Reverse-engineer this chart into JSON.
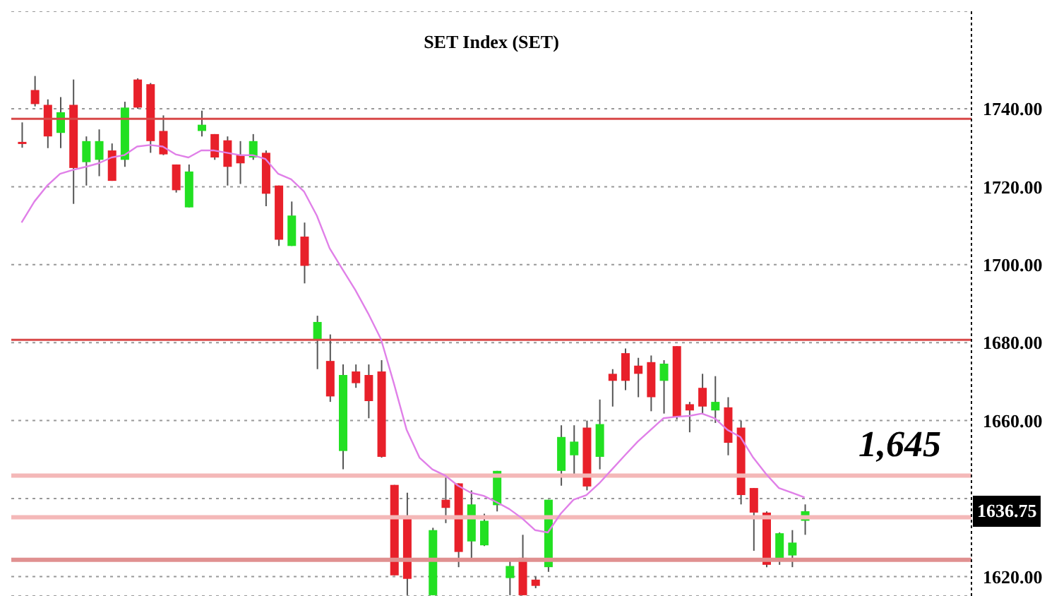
{
  "chart_data": {
    "type": "candlestick",
    "title": "SET  Index  (SET)",
    "categories": [
      null,
      null,
      null,
      null,
      null,
      null,
      null,
      null,
      null,
      null,
      null,
      null,
      null,
      null,
      null,
      null,
      null,
      null,
      null,
      null,
      null,
      null,
      null,
      null,
      null,
      null,
      null,
      null,
      null,
      null,
      null,
      null,
      null,
      null,
      null,
      null,
      null,
      null,
      null,
      null,
      null,
      null,
      null,
      null,
      null,
      null,
      null,
      null,
      null,
      null,
      null,
      null,
      null,
      null,
      null,
      null,
      null,
      null,
      null,
      null,
      null,
      null
    ],
    "ohlc": [
      [
        1731.5,
        1736.5,
        1730,
        1731
      ],
      [
        1744.8,
        1748.4,
        1740.6,
        1741.2
      ],
      [
        1741,
        1742.4,
        1729.9,
        1732.9
      ],
      [
        1733.8,
        1743,
        1729.9,
        1739.1
      ],
      [
        1741,
        1747.5,
        1715.6,
        1724.8
      ],
      [
        1726.3,
        1732.9,
        1720.3,
        1731.7
      ],
      [
        1726.9,
        1734.7,
        1722.7,
        1731.7
      ],
      [
        1729.3,
        1731.1,
        1721.5,
        1721.5
      ],
      [
        1726.9,
        1741.8,
        1725.1,
        1740.3
      ],
      [
        1747.5,
        1747.8,
        1740,
        1740.3
      ],
      [
        1746.3,
        1746.6,
        1728.7,
        1731.7
      ],
      [
        1734.3,
        1738.3,
        1728.1,
        1728.3
      ],
      [
        1725.7,
        1725.7,
        1718.5,
        1719.1
      ],
      [
        1714.7,
        1725.7,
        1714.7,
        1723.9
      ],
      [
        1734.3,
        1739.5,
        1732.9,
        1735.9
      ],
      [
        1733.5,
        1733.5,
        1726.9,
        1727.5
      ],
      [
        1731.9,
        1732.9,
        1720.3,
        1725.1
      ],
      [
        1728.1,
        1731.7,
        1720.7,
        1726
      ],
      [
        1727.5,
        1733.5,
        1726.9,
        1731.7
      ],
      [
        1728.7,
        1729.3,
        1715,
        1718.2
      ],
      [
        1720.3,
        1720.3,
        1704.8,
        1706.4
      ],
      [
        1704.8,
        1716.2,
        1704.8,
        1712.6
      ],
      [
        1707.2,
        1710.8,
        1695.2,
        1699.7
      ],
      [
        1680.9,
        1686.9,
        1673.2,
        1685.3
      ],
      [
        1675.3,
        1682.1,
        1664.8,
        1666.2
      ],
      [
        1652.2,
        1674.4,
        1647.5,
        1671.7
      ],
      [
        1672.6,
        1674.4,
        1668.4,
        1669.6
      ],
      [
        1671.7,
        1674.4,
        1660.6,
        1665
      ],
      [
        1672.6,
        1675.5,
        1650.5,
        1650.7
      ],
      [
        1643.5,
        1643.5,
        1620.3,
        1620.3
      ],
      [
        1635.5,
        1641.5,
        1615.2,
        1619.4
      ],
      null,
      [
        1615.2,
        1632.5,
        1615.2,
        1631.9
      ],
      [
        1639.7,
        1645.7,
        1633.7,
        1637.6
      ],
      [
        1643.9,
        1643.9,
        1622.4,
        1626.3
      ],
      [
        1629,
        1642.1,
        1624.2,
        1638.5
      ],
      [
        1628,
        1636.1,
        1627.8,
        1634.3
      ],
      [
        1638.3,
        1647.1,
        1636.7,
        1647.1
      ],
      [
        1619.6,
        1624.2,
        1615.2,
        1622.7
      ],
      [
        1624.8,
        1630.7,
        1615.2,
        1615.2
      ],
      [
        1619.2,
        1620,
        1617,
        1617.6
      ],
      [
        1622.4,
        1639.7,
        1621.2,
        1639.7
      ],
      [
        1647.1,
        1658.8,
        1643.3,
        1655.8
      ],
      [
        1651.1,
        1658.8,
        1645.7,
        1654.6
      ],
      [
        1658.2,
        1660,
        1642.1,
        1643.1
      ],
      [
        1650.7,
        1665.4,
        1647.5,
        1659.1
      ],
      [
        1672,
        1673.2,
        1663.6,
        1670.2
      ],
      [
        1677.3,
        1678.5,
        1667.8,
        1670.2
      ],
      [
        1674.1,
        1676.1,
        1666,
        1672
      ],
      [
        1675,
        1676.7,
        1662.4,
        1666
      ],
      [
        1670.2,
        1675.5,
        1661.8,
        1674.6
      ],
      [
        1679.1,
        1679.1,
        1660.3,
        1661
      ],
      [
        1664.2,
        1664.8,
        1657,
        1662.6
      ],
      [
        1668.4,
        1672,
        1661.8,
        1663.6
      ],
      [
        1662.6,
        1671.4,
        1659.4,
        1664.8
      ],
      [
        1663.4,
        1666,
        1651.1,
        1654.3
      ],
      [
        1658.2,
        1660,
        1638.5,
        1640.9
      ],
      [
        1642.7,
        1642.7,
        1626.6,
        1636.4
      ],
      [
        1636.4,
        1636.7,
        1622.4,
        1623
      ],
      [
        1624.4,
        1631.3,
        1623,
        1631.1
      ],
      [
        1625.4,
        1631.9,
        1622.4,
        1628.7
      ],
      [
        1634.3,
        1638.5,
        1630.7,
        1636.75
      ]
    ],
    "colors": [
      "#e8202a",
      "#e8202a",
      "#e8202a",
      "#22e022",
      "#e8202a",
      "#22e022",
      "#22e022",
      "#e8202a",
      "#22e022",
      "#e8202a",
      "#e8202a",
      "#e8202a",
      "#e8202a",
      "#22e022",
      "#22e022",
      "#e8202a",
      "#e8202a",
      "#e8202a",
      "#22e022",
      "#e8202a",
      "#e8202a",
      "#22e022",
      "#e8202a",
      "#22e022",
      "#e8202a",
      "#22e022",
      "#e8202a",
      "#e8202a",
      "#e8202a",
      "#e8202a",
      "#e8202a",
      null,
      "#22e022",
      "#e8202a",
      "#e8202a",
      "#22e022",
      "#22e022",
      "#22e022",
      "#22e022",
      "#e8202a",
      "#e8202a",
      "#22e022",
      "#22e022",
      "#22e022",
      "#e8202a",
      "#22e022",
      "#e8202a",
      "#e8202a",
      "#e8202a",
      "#e8202a",
      "#22e022",
      "#e8202a",
      "#e8202a",
      "#e8202a",
      "#22e022",
      "#e8202a",
      "#e8202a",
      "#e8202a",
      "#e8202a",
      "#22e022",
      "#22e022",
      "#22e022"
    ],
    "series": [
      {
        "type": "line",
        "color": "#e080e8",
        "values": [
          1710.8,
          1716.2,
          1720.3,
          1723.3,
          1724.3,
          1725.1,
          1726,
          1727.5,
          1728.1,
          1730.3,
          1730.7,
          1730.3,
          1728.3,
          1727.5,
          1729.3,
          1729.3,
          1728.7,
          1728.1,
          1728.1,
          1727.1,
          1723.3,
          1721.9,
          1718.8,
          1712.6,
          1704.2,
          1698.8,
          1693.5,
          1687.5,
          1680.9,
          1669.6,
          1657.6,
          1650.5,
          1647.5,
          1645.9,
          1643.3,
          1641.5,
          1640.7,
          1639.1,
          1637.3,
          1634.9,
          1631.9,
          1631.3,
          1636.1,
          1639.7,
          1640.9,
          1643.9,
          1647.5,
          1651.1,
          1654.6,
          1657.6,
          1660.6,
          1661,
          1661.2,
          1661.8,
          1660.6,
          1657.6,
          1655.8,
          1650.5,
          1646.3,
          1642.7,
          1641.5,
          1640.3
        ]
      }
    ],
    "ylim": [
      1615,
      1765
    ],
    "yticks": [
      {
        "value": 1620,
        "label": "1620.00"
      },
      {
        "value": 1640,
        "label": null
      },
      {
        "value": 1660,
        "label": "1660.00"
      },
      {
        "value": 1680,
        "label": "1680.00"
      },
      {
        "value": 1700,
        "label": "1700.00"
      },
      {
        "value": 1720,
        "label": "1720.00"
      },
      {
        "value": 1740,
        "label": "1740.00"
      }
    ],
    "ref_lines": [
      {
        "axis": "y",
        "value": 1737.4,
        "color": "#d84848"
      },
      {
        "axis": "y",
        "value": 1680.7,
        "color": "#d84848"
      },
      {
        "axis": "y",
        "value": 1645.9,
        "color": "#f4b8b8"
      },
      {
        "axis": "y",
        "value": 1635.2,
        "color": "#f4b8b8"
      },
      {
        "axis": "y",
        "value": 1624.3,
        "color": "#e09090"
      }
    ],
    "annotations": [
      "1,645",
      "1636.75"
    ],
    "grid": "y"
  }
}
